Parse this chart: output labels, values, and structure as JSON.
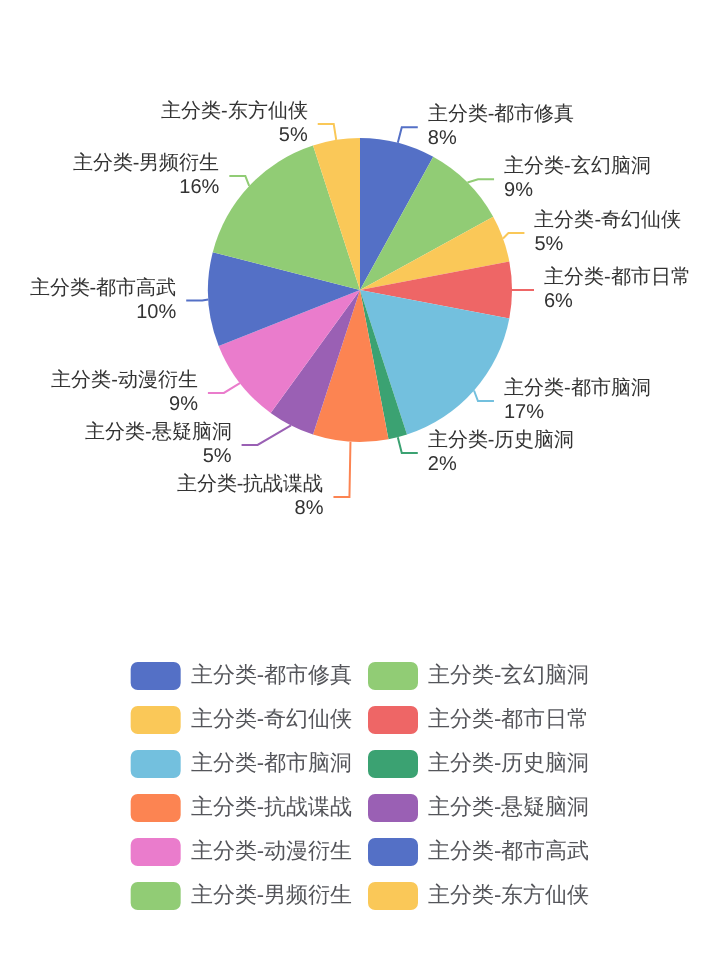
{
  "chart_data": {
    "type": "pie",
    "categories": [
      "主分类-都市修真",
      "主分类-玄幻脑洞",
      "主分类-奇幻仙侠",
      "主分类-都市日常",
      "主分类-都市脑洞",
      "主分类-历史脑洞",
      "主分类-抗战谍战",
      "主分类-悬疑脑洞",
      "主分类-动漫衍生",
      "主分类-都市高武",
      "主分类-男频衍生",
      "主分类-东方仙侠"
    ],
    "values": [
      8,
      9,
      5,
      6,
      17,
      2,
      8,
      5,
      9,
      10,
      16,
      5
    ],
    "value_labels": [
      "8%",
      "9%",
      "5%",
      "6%",
      "17%",
      "2%",
      "8%",
      "5%",
      "9%",
      "10%",
      "16%",
      "5%"
    ],
    "colors": [
      "#5470c6",
      "#91cc75",
      "#fac858",
      "#ee6666",
      "#73c0de",
      "#3ba272",
      "#fc8452",
      "#9a60b4",
      "#ea7ccc",
      "#5470c6",
      "#91cc75",
      "#fac858"
    ],
    "legend": "bottom"
  }
}
